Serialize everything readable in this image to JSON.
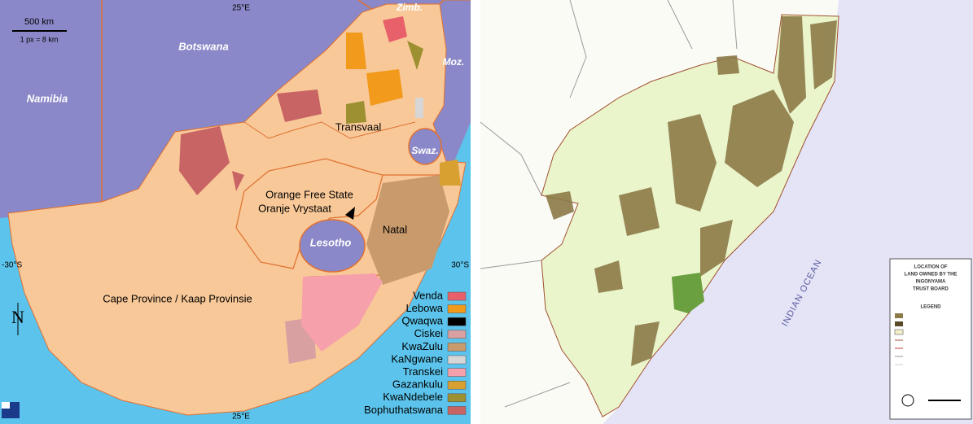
{
  "left_map": {
    "scale": {
      "distance": "500 km",
      "ratio": "1 px = 8 km"
    },
    "meridian_top": "25°E",
    "meridian_bottom": "25°E",
    "parallel_left": "-30°S",
    "parallel_right": "30°S",
    "countries": {
      "zimbabwe": "Zimb.",
      "botswana": "Botswana",
      "mozambique": "Moz.",
      "namibia": "Namibia",
      "swaziland": "Swaz.",
      "lesotho": "Lesotho"
    },
    "provinces": {
      "transvaal": "Transvaal",
      "ofs_en": "Orange Free State",
      "ofs_af": "Oranje Vrystaat",
      "natal": "Natal",
      "cape": "Cape Province / Kaap Provinsie"
    },
    "north": "N",
    "legend": [
      {
        "label": "Venda",
        "color": "#e8606a"
      },
      {
        "label": "Lebowa",
        "color": "#f29a1c"
      },
      {
        "label": "Qwaqwa",
        "color": "#000000"
      },
      {
        "label": "Ciskei",
        "color": "#d8a0a0"
      },
      {
        "label": "KwaZulu",
        "color": "#c89a6c"
      },
      {
        "label": "KaNgwane",
        "color": "#d6d6d6"
      },
      {
        "label": "Transkei",
        "color": "#f5a0aa"
      },
      {
        "label": "Gazankulu",
        "color": "#d8a030"
      },
      {
        "label": "KwaNdebele",
        "color": "#9c9030"
      },
      {
        "label": "Bophuthatswana",
        "color": "#c86464"
      }
    ]
  },
  "right_map": {
    "ocean_label": "INDIAN OCEAN",
    "legend_title": [
      "LOCATION OF",
      "LAND OWNED BY THE",
      "INGONYAMA",
      "TRUST BOARD"
    ],
    "legend_heading": "LEGEND"
  }
}
